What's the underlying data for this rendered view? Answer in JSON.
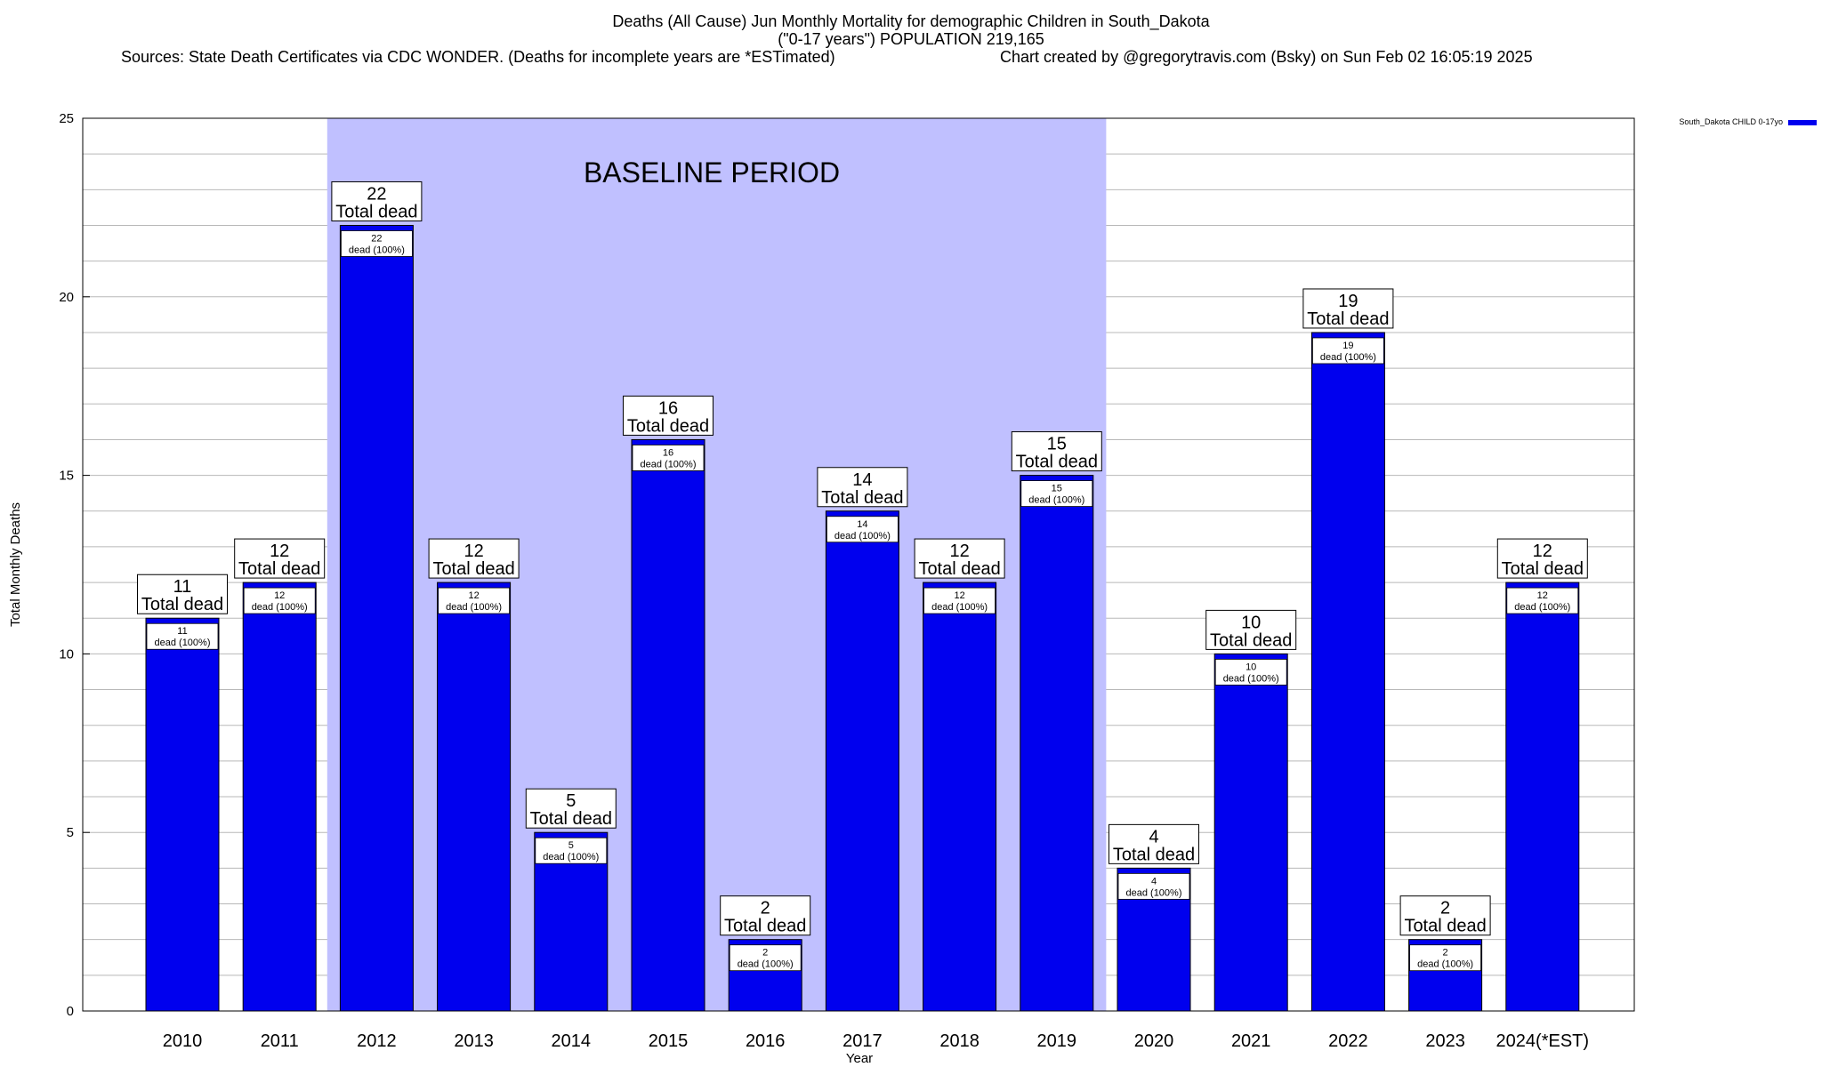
{
  "header": {
    "title_line1": "Deaths (All Cause) Jun Monthly Mortality for demographic Children in South_Dakota",
    "title_line2": "(\"0-17 years\") POPULATION 219,165",
    "sources": "Sources: State Death Certificates via CDC WONDER. (Deaths for incomplete years are *ESTimated)",
    "credit": "Chart created by @gregorytravis.com (Bsky) on Sun Feb 02 16:05:19 2025"
  },
  "chart_data": {
    "type": "bar",
    "categories": [
      "2010",
      "2011",
      "2012",
      "2013",
      "2014",
      "2015",
      "2016",
      "2017",
      "2018",
      "2019",
      "2020",
      "2021",
      "2022",
      "2023",
      "2024(*EST)"
    ],
    "series": [
      {
        "name": "South_Dakota CHILD 0-17yo",
        "values": [
          11,
          12,
          22,
          12,
          5,
          16,
          2,
          14,
          12,
          15,
          4,
          10,
          19,
          2,
          12
        ],
        "color": "#0000ee"
      }
    ],
    "xlabel": "Year",
    "ylabel": "Total Monthly Deaths",
    "ylim": [
      0,
      25
    ],
    "yticks": [
      0,
      5,
      10,
      15,
      20,
      25
    ],
    "grid": "horizontal",
    "legend": "top-right",
    "annotation": {
      "text": "BASELINE PERIOD",
      "start_category": "2012",
      "end_category": "2019",
      "color": "#c0c0ff"
    },
    "total_label": "Total dead",
    "inner_label_suffix": "dead (100%)"
  }
}
